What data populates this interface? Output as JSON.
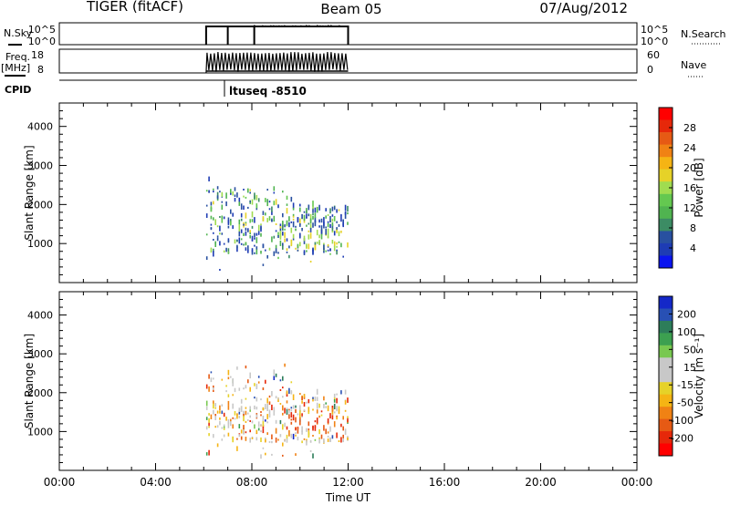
{
  "header": {
    "left": "TIGER (fitACF)",
    "center": "Beam 05",
    "right": "07/Aug/2012"
  },
  "status_panels": {
    "nsky_label": "N.Sky",
    "nsky_ticks": [
      "10^5",
      "10^0"
    ],
    "nsearch_label": "N.Search",
    "freq_label": "Freq.",
    "freq_units": "[MHz]",
    "freq_ticks": [
      "18",
      "8"
    ],
    "nave_label": "Nave",
    "nave_ticks": [
      "60",
      "0"
    ],
    "cpid_label": "CPID",
    "cpid_value": "ltuseq -8510"
  },
  "chart_data": [
    {
      "type": "heatmap",
      "name": "power",
      "ylabel": "Slant Range [km]",
      "ylim": [
        0,
        4600
      ],
      "yticks": [
        1000,
        2000,
        3000,
        4000
      ],
      "xlim": [
        0,
        24
      ],
      "colorbar": {
        "label": "Power [dB]",
        "ticks": [
          "4",
          "8",
          "12",
          "16",
          "20",
          "24",
          "28"
        ],
        "colors": [
          "#0a14f0",
          "#1e3cb4",
          "#2850a0",
          "#3c8c64",
          "#50b450",
          "#64c850",
          "#a0dc50",
          "#e6d228",
          "#f5b414",
          "#f08214",
          "#e65a14",
          "#e6280a",
          "#ff0000"
        ]
      },
      "data_extent": {
        "x_start": 6.1,
        "x_end": 12.0,
        "range_min": 300,
        "range_max": 2800
      }
    },
    {
      "type": "heatmap",
      "name": "velocity",
      "ylabel": "Slant Range [km]",
      "xlabel": "Time UT",
      "ylim": [
        0,
        4600
      ],
      "yticks": [
        1000,
        2000,
        3000,
        4000
      ],
      "xlim": [
        0,
        24
      ],
      "xticks": [
        "00:00",
        "04:00",
        "08:00",
        "12:00",
        "16:00",
        "20:00",
        "00:00"
      ],
      "colorbar": {
        "label": "Velocity [m s⁻¹]",
        "ticks": [
          "200",
          "100",
          "50",
          "15",
          "-15",
          "-50",
          "-100",
          "-200"
        ],
        "colors": [
          "#1428c8",
          "#2850b4",
          "#2d7d5a",
          "#3ca050",
          "#78c850",
          "#c8c8c8",
          "#c8c8c8",
          "#e6d228",
          "#f5b414",
          "#f08214",
          "#e65a14",
          "#e6280a",
          "#ff0000"
        ]
      },
      "data_extent": {
        "x_start": 6.1,
        "x_end": 12.0,
        "range_min": 300,
        "range_max": 2800
      }
    }
  ]
}
